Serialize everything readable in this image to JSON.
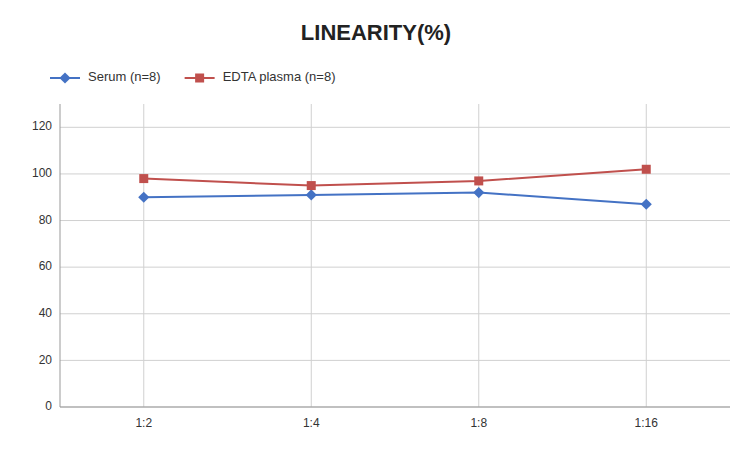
{
  "chart_data": {
    "type": "line",
    "title": "LINEARITY(%)",
    "categories": [
      "1:2",
      "1:4",
      "1:8",
      "1:16"
    ],
    "series": [
      {
        "name": "Serum (n=8)",
        "color": "#4472C4",
        "values": [
          90,
          91,
          92,
          87
        ],
        "marker": "diamond"
      },
      {
        "name": "EDTA plasma (n=8)",
        "color": "#C0504D",
        "values": [
          98,
          95,
          97,
          102
        ],
        "marker": "square"
      }
    ],
    "ylim": [
      0,
      130
    ],
    "yticks": [
      0,
      20,
      40,
      60,
      80,
      100,
      120
    ],
    "grid": true,
    "legend": "upper-left"
  }
}
